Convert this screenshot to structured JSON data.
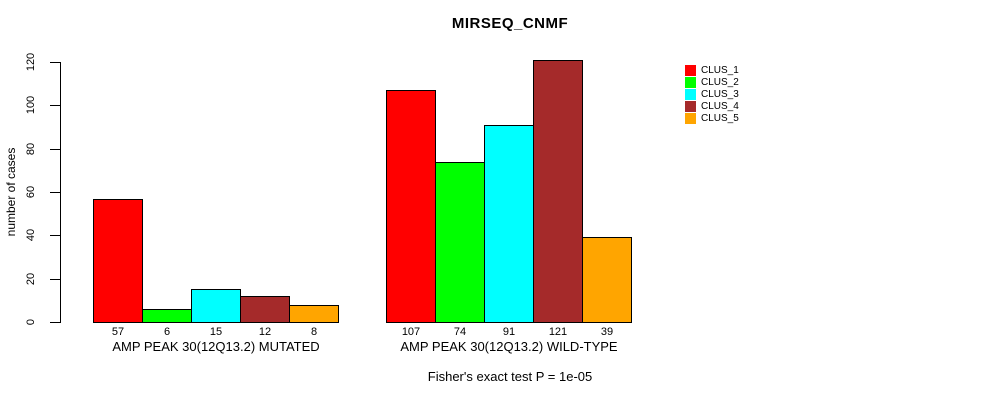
{
  "chart_data": {
    "type": "bar",
    "title": "MIRSEQ_CNMF",
    "ylabel": "number of cases",
    "xlabel": "",
    "ylim": [
      0,
      120
    ],
    "yticks": [
      0,
      20,
      40,
      60,
      80,
      100,
      120
    ],
    "grid": false,
    "legend_position": "right",
    "bar_border_color": "#000000",
    "background_color": "#ffffff",
    "series": [
      {
        "name": "CLUS_1",
        "color": "#FF0000"
      },
      {
        "name": "CLUS_2",
        "color": "#00FF00"
      },
      {
        "name": "CLUS_3",
        "color": "#00FFFF"
      },
      {
        "name": "CLUS_4",
        "color": "#A52A2A"
      },
      {
        "name": "CLUS_5",
        "color": "#FFA500"
      }
    ],
    "groups": [
      {
        "label": "AMP PEAK 30(12Q13.2) MUTATED",
        "values": [
          57,
          6,
          15,
          12,
          8
        ]
      },
      {
        "label": "AMP PEAK 30(12Q13.2) WILD-TYPE",
        "values": [
          107,
          74,
          91,
          121,
          39
        ]
      }
    ],
    "footnote": "Fisher's exact test P = 1e-05"
  }
}
